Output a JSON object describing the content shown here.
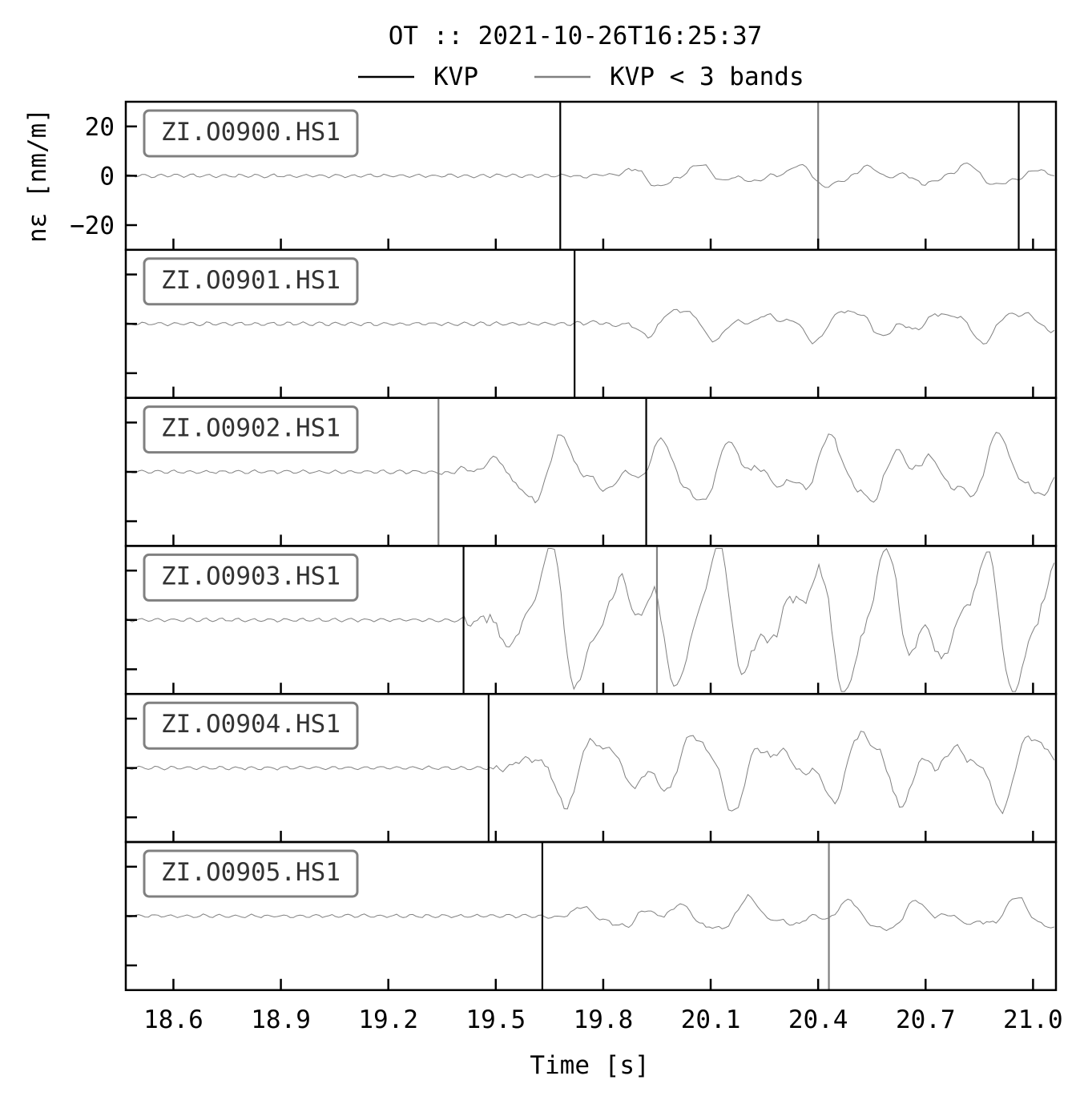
{
  "chart_data": {
    "type": "line",
    "title": "OT :: 2021-10-26T16:25:37",
    "xlabel": "Time [s]",
    "ylabel": "nε [nm/m]",
    "xlim": [
      18.5,
      21.1
    ],
    "ylim": [
      -30,
      30
    ],
    "xticks": [
      "18.6",
      "18.9",
      "19.2",
      "19.5",
      "19.8",
      "20.1",
      "20.4",
      "20.7",
      "21.0"
    ],
    "yticks": [
      "20",
      "0",
      "−20"
    ],
    "legend": {
      "placement": "top-center",
      "entries": [
        {
          "label": "KVP",
          "color": "#000000"
        },
        {
          "label": "KVP < 3 bands",
          "color": "#808080"
        }
      ]
    },
    "trace_color": "#808080",
    "panels": [
      {
        "station": "ZI.O0900.HS1",
        "picks_kvp": [
          19.68,
          20.96
        ],
        "picks_kvp3": [
          20.4
        ],
        "amplitude": 4
      },
      {
        "station": "ZI.O0901.HS1",
        "picks_kvp": [
          19.72
        ],
        "picks_kvp3": [],
        "amplitude": 6
      },
      {
        "station": "ZI.O0902.HS1",
        "picks_kvp": [
          19.92
        ],
        "picks_kvp3": [
          19.34
        ],
        "amplitude": 12
      },
      {
        "station": "ZI.O0903.HS1",
        "picks_kvp": [
          19.41
        ],
        "picks_kvp3": [
          19.95
        ],
        "amplitude": 26
      },
      {
        "station": "ZI.O0904.HS1",
        "picks_kvp": [
          19.48
        ],
        "picks_kvp3": [],
        "amplitude": 14
      },
      {
        "station": "ZI.O0905.HS1",
        "picks_kvp": [
          19.63
        ],
        "picks_kvp3": [
          20.43
        ],
        "amplitude": 6
      }
    ]
  }
}
